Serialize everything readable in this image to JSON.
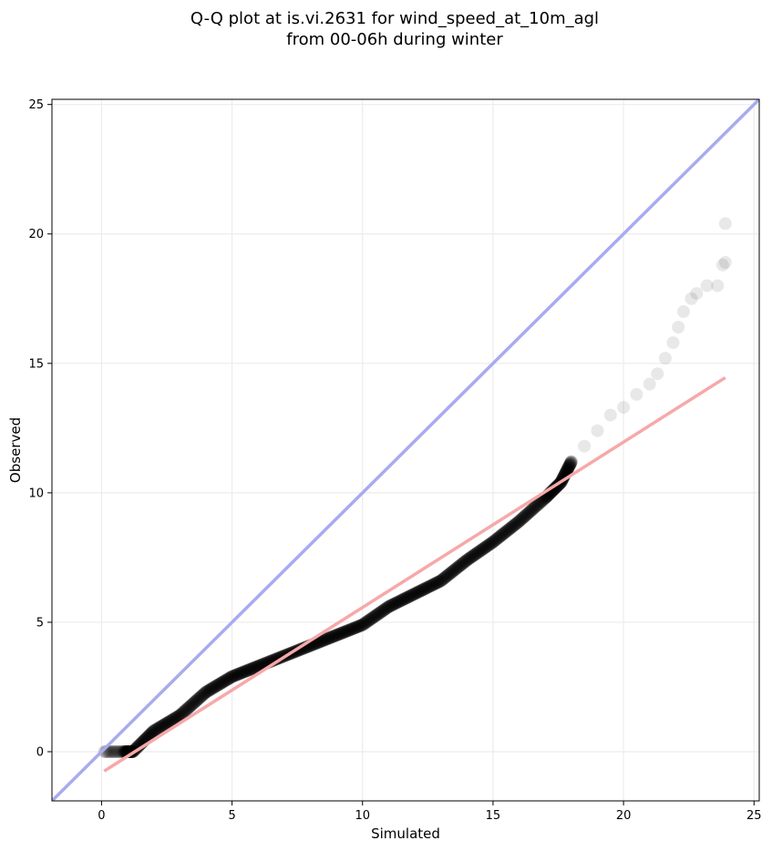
{
  "chart_data": {
    "type": "scatter",
    "title": "Q-Q plot at is.vi.2631 for wind_speed_at_10m_agl",
    "subtitle": "from 00-06h during winter",
    "xlabel": "Simulated",
    "ylabel": "Observed",
    "xlim": [
      -1.9,
      25.2
    ],
    "ylim": [
      -1.9,
      25.2
    ],
    "xticks": [
      0,
      5,
      10,
      15,
      20,
      25
    ],
    "yticks": [
      0,
      5,
      10,
      15,
      20,
      25
    ],
    "xtick_labels": [
      "0",
      "5",
      "10",
      "15",
      "20",
      "25"
    ],
    "ytick_labels": [
      "0",
      "5",
      "10",
      "15",
      "20",
      "25"
    ],
    "grid": true,
    "colors": {
      "points": "#000000",
      "identity_line": "#aaaaf0",
      "fit_line": "#f7a8a8"
    },
    "identity_line": {
      "slope": 1,
      "intercept": 0
    },
    "fit_line": {
      "x": [
        0.1,
        23.9
      ],
      "y": [
        -0.75,
        14.45
      ]
    },
    "quantiles": {
      "x": [
        0.1,
        0.8,
        1.2,
        2.0,
        3.0,
        4.0,
        5.0,
        6.0,
        7.0,
        8.0,
        9.0,
        10.0,
        11.0,
        12.0,
        13.0,
        14.0,
        15.0,
        16.0,
        17.0,
        17.6,
        18.0,
        18.5,
        19.0,
        19.5,
        20.0,
        20.5,
        21.0,
        21.3,
        21.6,
        21.9,
        22.1,
        22.3,
        22.6,
        22.8,
        23.2,
        23.6,
        23.8,
        23.9,
        23.9
      ],
      "y": [
        0.0,
        0.0,
        0.0,
        0.8,
        1.4,
        2.3,
        2.9,
        3.3,
        3.7,
        4.1,
        4.5,
        4.9,
        5.6,
        6.1,
        6.6,
        7.4,
        8.1,
        8.9,
        9.8,
        10.4,
        11.2,
        11.8,
        12.4,
        13.0,
        13.3,
        13.8,
        14.2,
        14.6,
        15.2,
        15.8,
        16.4,
        17.0,
        17.5,
        17.7,
        18.0,
        18.0,
        18.8,
        18.9,
        20.4
      ]
    }
  }
}
